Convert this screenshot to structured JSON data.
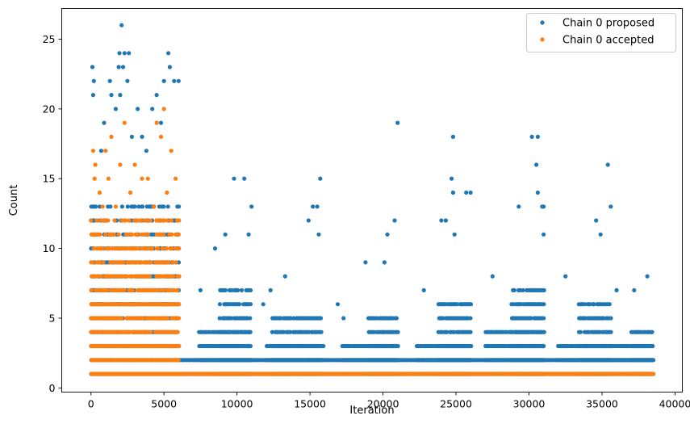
{
  "chart_data": {
    "type": "scatter",
    "title": "",
    "xlabel": "Iteration",
    "ylabel": "Count",
    "xlim": [
      -2000,
      40500
    ],
    "ylim": [
      -0.3,
      27.2
    ],
    "xticks": [
      0,
      5000,
      10000,
      15000,
      20000,
      25000,
      30000,
      35000,
      40000
    ],
    "yticks": [
      0,
      5,
      10,
      15,
      20,
      25
    ],
    "grid": false,
    "legend_position": "top-right",
    "series": [
      {
        "name": "Chain 0 proposed",
        "color": "#1f77b4",
        "bands": [
          {
            "x_range": [
              0,
              6000
            ],
            "y_max": 13
          },
          {
            "x_range": [
              6000,
              38500
            ],
            "y_max": 2
          },
          {
            "x_range": [
              7400,
              11000
            ],
            "y_max": 4
          },
          {
            "x_range": [
              8800,
              10900
            ],
            "y_max": 7
          },
          {
            "x_range": [
              12000,
              15900
            ],
            "y_max": 3
          },
          {
            "x_range": [
              12400,
              15800
            ],
            "y_max": 5
          },
          {
            "x_range": [
              17200,
              21000
            ],
            "y_max": 3
          },
          {
            "x_range": [
              19000,
              21000
            ],
            "y_max": 5
          },
          {
            "x_range": [
              22300,
              26000
            ],
            "y_max": 3
          },
          {
            "x_range": [
              23800,
              26000
            ],
            "y_max": 6
          },
          {
            "x_range": [
              27000,
              31000
            ],
            "y_max": 4
          },
          {
            "x_range": [
              28800,
              31000
            ],
            "y_max": 7
          },
          {
            "x_range": [
              32000,
              38500
            ],
            "y_max": 3
          },
          {
            "x_range": [
              33400,
              35600
            ],
            "y_max": 6
          },
          {
            "x_range": [
              37000,
              38500
            ],
            "y_max": 4
          }
        ],
        "outliers": [
          {
            "x": 100,
            "y": 23
          },
          {
            "x": 200,
            "y": 22
          },
          {
            "x": 150,
            "y": 21
          },
          {
            "x": 1300,
            "y": 22
          },
          {
            "x": 1900,
            "y": 23
          },
          {
            "x": 1950,
            "y": 24
          },
          {
            "x": 2100,
            "y": 26
          },
          {
            "x": 2300,
            "y": 24
          },
          {
            "x": 2600,
            "y": 24
          },
          {
            "x": 2500,
            "y": 22
          },
          {
            "x": 2200,
            "y": 23
          },
          {
            "x": 1400,
            "y": 21
          },
          {
            "x": 1700,
            "y": 20
          },
          {
            "x": 2000,
            "y": 21
          },
          {
            "x": 3200,
            "y": 20
          },
          {
            "x": 4200,
            "y": 20
          },
          {
            "x": 4500,
            "y": 21
          },
          {
            "x": 5300,
            "y": 24
          },
          {
            "x": 5400,
            "y": 23
          },
          {
            "x": 5700,
            "y": 22
          },
          {
            "x": 6000,
            "y": 22
          },
          {
            "x": 5000,
            "y": 22
          },
          {
            "x": 4800,
            "y": 19
          },
          {
            "x": 3500,
            "y": 18
          },
          {
            "x": 900,
            "y": 19
          },
          {
            "x": 700,
            "y": 17
          },
          {
            "x": 2800,
            "y": 18
          },
          {
            "x": 3800,
            "y": 17
          },
          {
            "x": 9800,
            "y": 15
          },
          {
            "x": 10500,
            "y": 15
          },
          {
            "x": 11000,
            "y": 13
          },
          {
            "x": 15700,
            "y": 15
          },
          {
            "x": 15200,
            "y": 13
          },
          {
            "x": 15500,
            "y": 13
          },
          {
            "x": 14900,
            "y": 12
          },
          {
            "x": 21000,
            "y": 19
          },
          {
            "x": 20800,
            "y": 12
          },
          {
            "x": 24800,
            "y": 18
          },
          {
            "x": 24700,
            "y": 15
          },
          {
            "x": 24800,
            "y": 14
          },
          {
            "x": 25700,
            "y": 14
          },
          {
            "x": 26000,
            "y": 14
          },
          {
            "x": 24000,
            "y": 12
          },
          {
            "x": 24300,
            "y": 12
          },
          {
            "x": 30200,
            "y": 18
          },
          {
            "x": 30600,
            "y": 18
          },
          {
            "x": 30500,
            "y": 16
          },
          {
            "x": 30600,
            "y": 14
          },
          {
            "x": 30900,
            "y": 13
          },
          {
            "x": 31000,
            "y": 13
          },
          {
            "x": 29300,
            "y": 13
          },
          {
            "x": 31000,
            "y": 11
          },
          {
            "x": 35400,
            "y": 16
          },
          {
            "x": 35600,
            "y": 13
          },
          {
            "x": 34600,
            "y": 12
          },
          {
            "x": 34900,
            "y": 11
          },
          {
            "x": 9200,
            "y": 11
          },
          {
            "x": 10800,
            "y": 11
          },
          {
            "x": 8500,
            "y": 10
          },
          {
            "x": 20300,
            "y": 11
          },
          {
            "x": 15600,
            "y": 11
          },
          {
            "x": 13300,
            "y": 8
          },
          {
            "x": 17300,
            "y": 5
          },
          {
            "x": 7500,
            "y": 7
          },
          {
            "x": 12300,
            "y": 7
          },
          {
            "x": 18800,
            "y": 9
          },
          {
            "x": 20100,
            "y": 9
          },
          {
            "x": 24900,
            "y": 11
          },
          {
            "x": 38100,
            "y": 8
          },
          {
            "x": 37200,
            "y": 7
          },
          {
            "x": 36000,
            "y": 7
          },
          {
            "x": 32500,
            "y": 8
          },
          {
            "x": 27500,
            "y": 8
          },
          {
            "x": 22800,
            "y": 7
          },
          {
            "x": 16900,
            "y": 6
          },
          {
            "x": 11800,
            "y": 6
          }
        ]
      },
      {
        "name": "Chain 0 accepted",
        "color": "#ff7f0e",
        "bands": [
          {
            "x_range": [
              0,
              6000
            ],
            "y_max": 12
          },
          {
            "x_range": [
              6000,
              38500
            ],
            "y_max": 1
          }
        ],
        "outliers": [
          {
            "x": 150,
            "y": 17
          },
          {
            "x": 300,
            "y": 16
          },
          {
            "x": 250,
            "y": 15
          },
          {
            "x": 1400,
            "y": 18
          },
          {
            "x": 2300,
            "y": 19
          },
          {
            "x": 3000,
            "y": 16
          },
          {
            "x": 4500,
            "y": 19
          },
          {
            "x": 5000,
            "y": 20
          },
          {
            "x": 4800,
            "y": 18
          },
          {
            "x": 5500,
            "y": 17
          },
          {
            "x": 1000,
            "y": 17
          },
          {
            "x": 2000,
            "y": 16
          },
          {
            "x": 3500,
            "y": 15
          },
          {
            "x": 600,
            "y": 14
          },
          {
            "x": 1200,
            "y": 15
          },
          {
            "x": 2700,
            "y": 14
          },
          {
            "x": 3900,
            "y": 15
          },
          {
            "x": 5200,
            "y": 14
          },
          {
            "x": 5800,
            "y": 15
          },
          {
            "x": 800,
            "y": 13
          },
          {
            "x": 1700,
            "y": 13
          },
          {
            "x": 4300,
            "y": 13
          }
        ]
      }
    ]
  }
}
